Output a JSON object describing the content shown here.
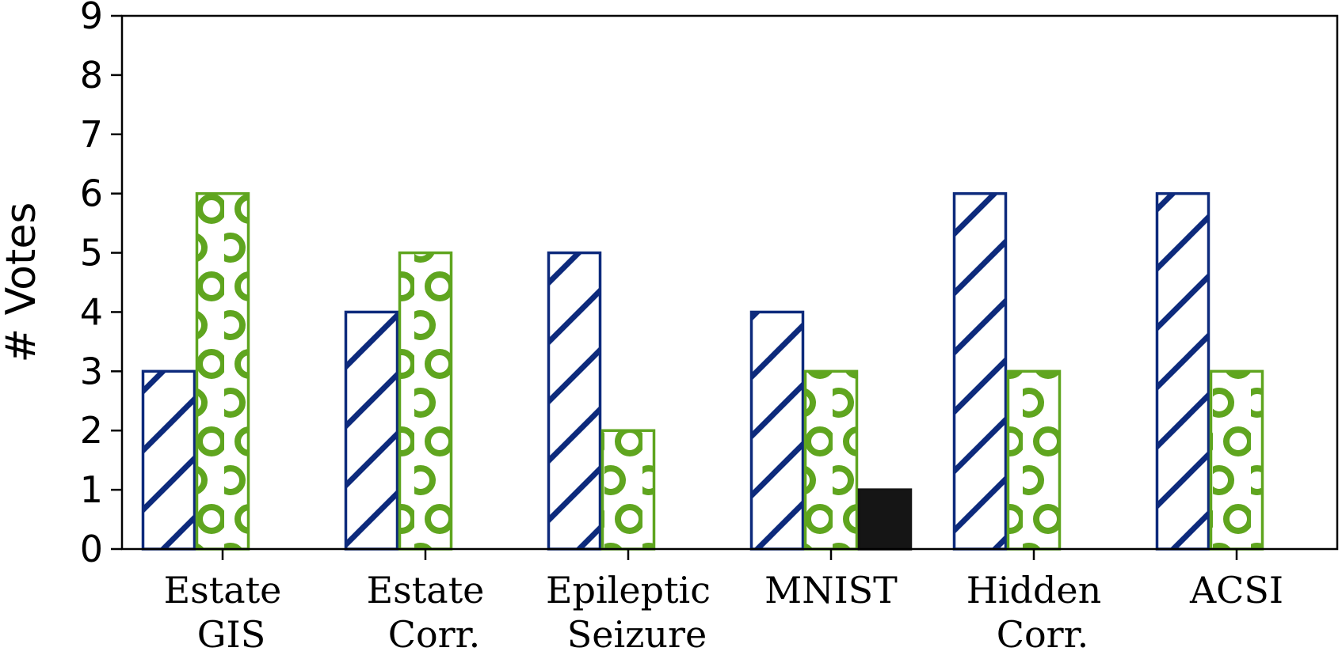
{
  "chart_data": {
    "type": "bar",
    "title": "",
    "xlabel": "",
    "ylabel": "# Votes",
    "ylim": [
      0,
      9
    ],
    "yticks": [
      "0",
      "1",
      "2",
      "3",
      "4",
      "5",
      "6",
      "7",
      "8",
      "9"
    ],
    "grid": false,
    "categories": [
      [
        "Estate",
        "GIS"
      ],
      [
        "Estate",
        "Corr."
      ],
      [
        "Epileptic",
        "Seizure"
      ],
      [
        "MNIST"
      ],
      [
        "Hidden",
        "Corr."
      ],
      [
        "ACSI"
      ]
    ],
    "series": [
      {
        "name": "series-1",
        "pattern": "hatch",
        "color": "#0d2a7c",
        "values": [
          3,
          4,
          5,
          4,
          6,
          6
        ]
      },
      {
        "name": "series-2",
        "pattern": "circles",
        "color": "#5fa51f",
        "values": [
          6,
          5,
          2,
          3,
          3,
          3
        ]
      },
      {
        "name": "series-3",
        "pattern": "solid",
        "color": "#151515",
        "values": [
          0,
          0,
          0,
          1,
          0,
          0
        ]
      }
    ]
  }
}
